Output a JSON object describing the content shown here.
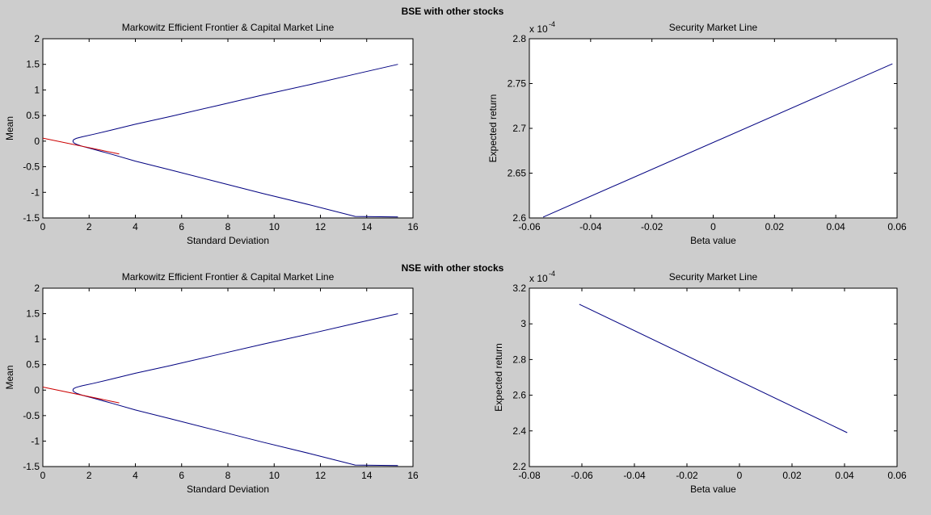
{
  "figure": {
    "background": "#cdcdcd",
    "axes_background": "#ffffff",
    "group_titles": [
      "BSE with other stocks",
      "NSE with other stocks"
    ]
  },
  "chart_data": [
    {
      "type": "line",
      "title": "Markowitz Efficient Frontier & Capital Market Line",
      "xlabel": "Standard Deviation",
      "ylabel": "Mean",
      "xlim": [
        0,
        16
      ],
      "ylim": [
        -1.5,
        2
      ],
      "xticks": [
        0,
        2,
        4,
        6,
        8,
        10,
        12,
        14,
        16
      ],
      "xtick_labels": [
        "0",
        "2",
        "4",
        "6",
        "8",
        "10",
        "12",
        "14",
        "16"
      ],
      "yticks": [
        -1.5,
        -1,
        -0.5,
        0,
        0.5,
        1,
        1.5,
        2
      ],
      "ytick_labels": [
        "-1.5",
        "-1",
        "-0.5",
        "0",
        "0.5",
        "1",
        "1.5",
        "2"
      ],
      "grid": false,
      "series": [
        {
          "color": "#000080",
          "x": [
            15.35,
            13.5,
            11.5,
            9.5,
            7.5,
            5.5,
            4.0,
            3.0,
            2.2,
            1.7,
            1.45,
            1.33,
            1.3,
            1.33,
            1.45,
            1.7,
            2.2,
            3.0,
            4.0,
            5.5,
            7.5,
            9.5,
            11.5,
            13.5,
            15.35
          ],
          "y": [
            1.5,
            1.31,
            1.1,
            0.9,
            0.69,
            0.48,
            0.33,
            0.22,
            0.135,
            0.085,
            0.055,
            0.03,
            0.0,
            -0.03,
            -0.06,
            -0.1,
            -0.16,
            -0.26,
            -0.39,
            -0.56,
            -0.79,
            -1.02,
            -1.24,
            -1.47,
            -1.48
          ]
        },
        {
          "color": "#cc0000",
          "x": [
            0,
            3.3
          ],
          "y": [
            0.06,
            -0.25
          ]
        }
      ]
    },
    {
      "type": "line",
      "title": "Security Market Line",
      "xlabel": "Beta value",
      "ylabel": "Expected return",
      "scale_exponent_label": "x 10",
      "scale_exponent": "-4",
      "xlim": [
        -0.06,
        0.06
      ],
      "ylim": [
        2.6,
        2.8
      ],
      "xticks": [
        -0.06,
        -0.04,
        -0.02,
        0,
        0.02,
        0.04,
        0.06
      ],
      "xtick_labels": [
        "-0.06",
        "-0.04",
        "-0.02",
        "0",
        "0.02",
        "0.04",
        "0.06"
      ],
      "yticks": [
        2.6,
        2.65,
        2.7,
        2.75,
        2.8
      ],
      "ytick_labels": [
        "2.6",
        "2.65",
        "2.7",
        "2.75",
        "2.8"
      ],
      "grid": false,
      "series": [
        {
          "color": "#000080",
          "x": [
            -0.0555,
            0.0585
          ],
          "y": [
            2.601,
            2.772
          ]
        }
      ]
    },
    {
      "type": "line",
      "title": "Markowitz Efficient Frontier & Capital Market Line",
      "xlabel": "Standard Deviation",
      "ylabel": "Mean",
      "xlim": [
        0,
        16
      ],
      "ylim": [
        -1.5,
        2
      ],
      "xticks": [
        0,
        2,
        4,
        6,
        8,
        10,
        12,
        14,
        16
      ],
      "xtick_labels": [
        "0",
        "2",
        "4",
        "6",
        "8",
        "10",
        "12",
        "14",
        "16"
      ],
      "yticks": [
        -1.5,
        -1,
        -0.5,
        0,
        0.5,
        1,
        1.5,
        2
      ],
      "ytick_labels": [
        "-1.5",
        "-1",
        "-0.5",
        "0",
        "0.5",
        "1",
        "1.5",
        "2"
      ],
      "grid": false,
      "series": [
        {
          "color": "#000080",
          "x": [
            15.35,
            13.5,
            11.5,
            9.5,
            7.5,
            5.5,
            4.0,
            3.0,
            2.2,
            1.7,
            1.45,
            1.33,
            1.3,
            1.33,
            1.45,
            1.7,
            2.2,
            3.0,
            4.0,
            5.5,
            7.5,
            9.5,
            11.5,
            13.5,
            15.35
          ],
          "y": [
            1.5,
            1.31,
            1.1,
            0.9,
            0.69,
            0.48,
            0.33,
            0.22,
            0.135,
            0.085,
            0.055,
            0.03,
            0.0,
            -0.03,
            -0.06,
            -0.1,
            -0.16,
            -0.26,
            -0.39,
            -0.56,
            -0.79,
            -1.02,
            -1.24,
            -1.47,
            -1.48
          ]
        },
        {
          "color": "#cc0000",
          "x": [
            0,
            3.3
          ],
          "y": [
            0.06,
            -0.25
          ]
        }
      ]
    },
    {
      "type": "line",
      "title": "Security Market Line",
      "xlabel": "Beta value",
      "ylabel": "Expected return",
      "scale_exponent_label": "x 10",
      "scale_exponent": "-4",
      "xlim": [
        -0.08,
        0.06
      ],
      "ylim": [
        2.2,
        3.2
      ],
      "xticks": [
        -0.08,
        -0.06,
        -0.04,
        -0.02,
        0,
        0.02,
        0.04,
        0.06
      ],
      "xtick_labels": [
        "-0.08",
        "-0.06",
        "-0.04",
        "-0.02",
        "0",
        "0.02",
        "0.04",
        "0.06"
      ],
      "yticks": [
        2.2,
        2.4,
        2.6,
        2.8,
        3,
        3.2
      ],
      "ytick_labels": [
        "2.2",
        "2.4",
        "2.6",
        "2.8",
        "3",
        "3.2"
      ],
      "grid": false,
      "series": [
        {
          "color": "#000080",
          "x": [
            -0.061,
            0.041
          ],
          "y": [
            3.11,
            2.39
          ]
        }
      ]
    }
  ]
}
